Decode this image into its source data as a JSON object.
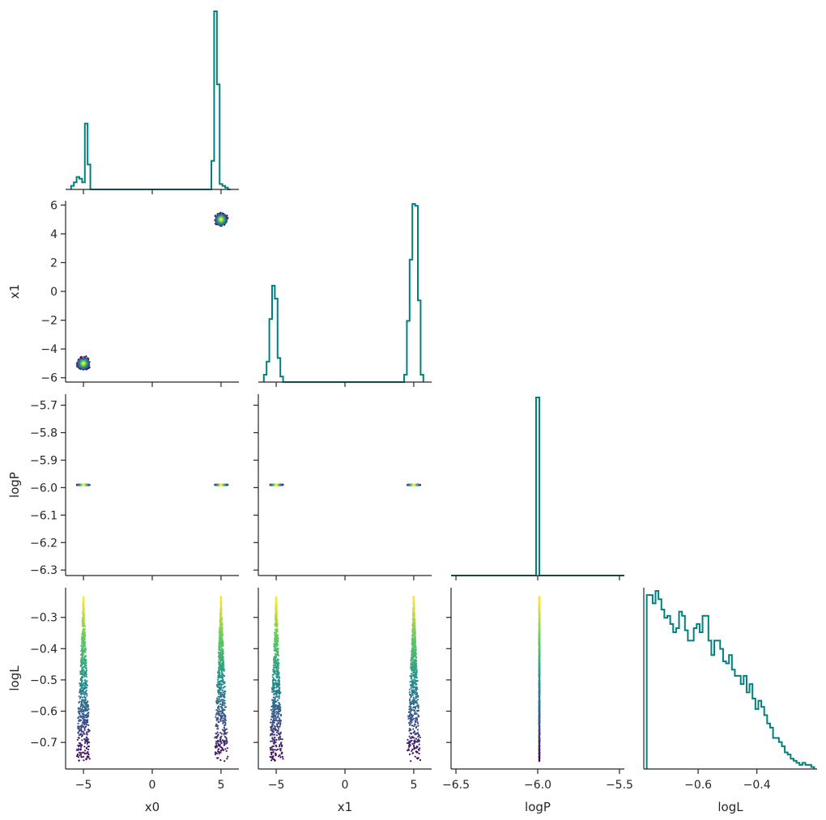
{
  "chart_data": {
    "type": "scatter",
    "layout": "corner-plot",
    "variables": [
      "x0",
      "x1",
      "logP",
      "logL"
    ],
    "colors": {
      "histogram": "#00807f",
      "colormap": [
        "#440154",
        "#3b528b",
        "#21918c",
        "#5ec962",
        "#fde725"
      ],
      "axis": "#262626"
    },
    "grid": false,
    "x_axes": {
      "x0": {
        "range": [
          -6.3,
          6.3
        ],
        "ticks": [
          -5,
          0,
          5
        ],
        "tick_labels": [
          "−5",
          "0",
          "5"
        ]
      },
      "x1": {
        "range": [
          -6.3,
          6.3
        ],
        "ticks": [
          -5,
          0,
          5
        ],
        "tick_labels": [
          "−5",
          "0",
          "5"
        ]
      },
      "logP": {
        "range": [
          -6.53,
          -5.47
        ],
        "ticks": [
          -6.5,
          -6.0,
          -5.5
        ],
        "tick_labels": [
          "−6.5",
          "−6.0",
          "−5.5"
        ]
      },
      "logL": {
        "range": [
          -0.785,
          -0.195
        ],
        "ticks": [
          -0.6,
          -0.4
        ],
        "tick_labels": [
          "−0.6",
          "−0.4"
        ]
      }
    },
    "y_axes": {
      "x1": {
        "range": [
          -6.3,
          6.3
        ],
        "ticks": [
          -6,
          -4,
          -2,
          0,
          2,
          4,
          6
        ],
        "tick_labels": [
          "−6",
          "−4",
          "−2",
          "0",
          "2",
          "4",
          "6"
        ]
      },
      "logP": {
        "range": [
          -6.32,
          -5.66
        ],
        "ticks": [
          -6.3,
          -6.2,
          -6.1,
          -6.0,
          -5.9,
          -5.8,
          -5.7
        ],
        "tick_labels": [
          "−6.3",
          "−6.2",
          "−6.1",
          "−6.0",
          "−5.9",
          "−5.8",
          "−5.7"
        ]
      },
      "logL": {
        "range": [
          -0.785,
          -0.205
        ],
        "ticks": [
          -0.7,
          -0.6,
          -0.5,
          -0.4,
          -0.3
        ],
        "tick_labels": [
          "−0.7",
          "−0.6",
          "−0.5",
          "−0.4",
          "−0.3"
        ]
      }
    },
    "histograms": {
      "x0": {
        "edges": [
          -5.9,
          -5.7,
          -5.5,
          -5.3,
          -5.1,
          -4.9,
          -4.7,
          -4.5,
          -4.3,
          4.3,
          4.5,
          4.7,
          4.9,
          5.1,
          5.3,
          5.5,
          5.7
        ],
        "counts": [
          0.02,
          0.04,
          0.07,
          0.06,
          0.04,
          0.37,
          0.14,
          0,
          0,
          0.16,
          1.0,
          0.59,
          0.03,
          0.02,
          0.01,
          0,
          0
        ]
      },
      "x1": {
        "edges": [
          -5.9,
          -5.7,
          -5.5,
          -5.3,
          -5.1,
          -4.9,
          -4.7,
          -4.5,
          -4.3,
          4.3,
          4.5,
          4.7,
          4.9,
          5.1,
          5.3,
          5.5,
          5.7
        ],
        "counts": [
          0.04,
          0.11,
          0.34,
          0.52,
          0.45,
          0.13,
          0.03,
          0,
          0,
          0.04,
          0.33,
          0.66,
          0.96,
          0.95,
          0.44,
          0.04,
          0
        ]
      },
      "logP": {
        "edges": [
          -6.53,
          -6.01,
          -5.99,
          -5.47
        ],
        "counts": [
          0,
          1.0,
          0
        ]
      },
      "logL": {
        "edges": [
          -0.775,
          -0.765,
          -0.755,
          -0.745,
          -0.735,
          -0.725,
          -0.715,
          -0.705,
          -0.695,
          -0.685,
          -0.675,
          -0.665,
          -0.655,
          -0.645,
          -0.635,
          -0.625,
          -0.615,
          -0.605,
          -0.595,
          -0.585,
          -0.575,
          -0.565,
          -0.555,
          -0.545,
          -0.535,
          -0.525,
          -0.515,
          -0.505,
          -0.495,
          -0.485,
          -0.475,
          -0.465,
          -0.455,
          -0.445,
          -0.435,
          -0.425,
          -0.415,
          -0.405,
          -0.395,
          -0.385,
          -0.375,
          -0.365,
          -0.355,
          -0.345,
          -0.335,
          -0.325,
          -0.315,
          -0.305,
          -0.295,
          -0.285,
          -0.275,
          -0.265,
          -0.255,
          -0.245,
          -0.235,
          -0.225,
          -0.215,
          -0.205
        ],
        "counts": [
          0.84,
          0.84,
          0.8,
          0.86,
          0.82,
          0.77,
          0.73,
          0.74,
          0.7,
          0.66,
          0.68,
          0.76,
          0.74,
          0.67,
          0.62,
          0.62,
          0.68,
          0.7,
          0.66,
          0.74,
          0.74,
          0.62,
          0.55,
          0.62,
          0.62,
          0.58,
          0.52,
          0.51,
          0.55,
          0.48,
          0.45,
          0.45,
          0.41,
          0.45,
          0.37,
          0.41,
          0.34,
          0.29,
          0.33,
          0.3,
          0.26,
          0.22,
          0.2,
          0.15,
          0.15,
          0.13,
          0.11,
          0.08,
          0.07,
          0.05,
          0.04,
          0.03,
          0.02,
          0.03,
          0.02,
          0.02,
          0.01
        ]
      }
    },
    "clusters": [
      {
        "center": [
          -5.0,
          -5.0
        ],
        "radius": 0.55
      },
      {
        "center": [
          5.0,
          5.0
        ],
        "radius": 0.55
      }
    ],
    "logP_value": -5.99,
    "logL_range": [
      -0.76,
      -0.235
    ]
  }
}
